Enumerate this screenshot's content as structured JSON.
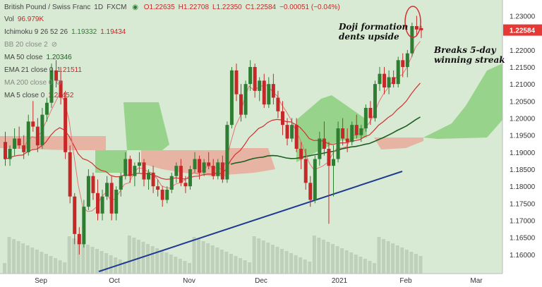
{
  "header": {
    "symbol": "British Pound / Swiss Franc",
    "interval": "1D",
    "source": "FXCM",
    "ohlc": {
      "o": "O1.22635",
      "h": "H1.22708",
      "l": "L1.22350",
      "c": "C1.22584",
      "chg": "−0.00051 (−0.04%)"
    }
  },
  "indicators": {
    "vol": {
      "label": "Vol",
      "value": "96.979K",
      "color": "#c0392b"
    },
    "ichimoku": {
      "label": "Ichimoku 9 26 52 26",
      "v1": "1.19332",
      "v2": "1.19434",
      "c1": "#2e8b3a",
      "c2": "#c0392b"
    },
    "bb": {
      "label": "BB 20 close 2"
    },
    "ma50": {
      "label": "MA 50 close",
      "value": "1.20346",
      "color": "#1e6b1e"
    },
    "ema21": {
      "label": "EMA 21 close 0",
      "value": "1.21511",
      "color": "#c0392b"
    },
    "ma200": {
      "label": "MA 200 close 0"
    },
    "ma5": {
      "label": "MA 5 close 0",
      "value": "1.21452",
      "color": "#c0392b"
    }
  },
  "price_label": "1.22584",
  "annotations": {
    "doji1": "Doji formation",
    "doji2": "dents upside",
    "streak1": "Breaks 5-day",
    "streak2": "winning streak"
  },
  "colors": {
    "up": "#2e7d32",
    "down": "#c62828",
    "cloud_green": "#8ccf7e",
    "cloud_red": "#e9a99a",
    "trendline": "#1f3a93",
    "ema": "#d32f2f",
    "ma50": "#1b5e20",
    "bg": "#d9ead4"
  },
  "chart_data": {
    "type": "candlestick",
    "xlabels": [
      "Sep",
      "Oct",
      "Nov",
      "Dec",
      "2021",
      "Feb",
      "Mar"
    ],
    "ylim": [
      1.155,
      1.233
    ],
    "yticks": [
      "1.23000",
      "1.22000",
      "1.21500",
      "1.21000",
      "1.20500",
      "1.20000",
      "1.19500",
      "1.19000",
      "1.18500",
      "1.18000",
      "1.17500",
      "1.17000",
      "1.16500",
      "1.16000"
    ],
    "candles": [
      [
        1.193,
        1.196,
        1.186,
        1.188
      ],
      [
        1.188,
        1.192,
        1.186,
        1.191
      ],
      [
        1.191,
        1.197,
        1.189,
        1.194
      ],
      [
        1.194,
        1.1975,
        1.191,
        1.192
      ],
      [
        1.192,
        1.195,
        1.188,
        1.19
      ],
      [
        1.19,
        1.201,
        1.189,
        1.199
      ],
      [
        1.199,
        1.205,
        1.196,
        1.1975
      ],
      [
        1.1975,
        1.2,
        1.19,
        1.192
      ],
      [
        1.192,
        1.203,
        1.191,
        1.201
      ],
      [
        1.201,
        1.206,
        1.199,
        1.2045
      ],
      [
        1.2045,
        1.216,
        1.203,
        1.214
      ],
      [
        1.214,
        1.217,
        1.209,
        1.211
      ],
      [
        1.211,
        1.215,
        1.204,
        1.206
      ],
      [
        1.206,
        1.208,
        1.188,
        1.19
      ],
      [
        1.19,
        1.192,
        1.175,
        1.177
      ],
      [
        1.177,
        1.178,
        1.163,
        1.166
      ],
      [
        1.166,
        1.168,
        1.16,
        1.163
      ],
      [
        1.163,
        1.176,
        1.162,
        1.174
      ],
      [
        1.174,
        1.185,
        1.173,
        1.183
      ],
      [
        1.183,
        1.184,
        1.176,
        1.178
      ],
      [
        1.178,
        1.182,
        1.17,
        1.172
      ],
      [
        1.172,
        1.179,
        1.17,
        1.177
      ],
      [
        1.177,
        1.183,
        1.176,
        1.181
      ],
      [
        1.181,
        1.183,
        1.17,
        1.172
      ],
      [
        1.172,
        1.18,
        1.17,
        1.179
      ],
      [
        1.179,
        1.184,
        1.177,
        1.183
      ],
      [
        1.183,
        1.19,
        1.182,
        1.188
      ],
      [
        1.188,
        1.189,
        1.181,
        1.183
      ],
      [
        1.183,
        1.187,
        1.18,
        1.186
      ],
      [
        1.186,
        1.19,
        1.184,
        1.187
      ],
      [
        1.187,
        1.188,
        1.18,
        1.182
      ],
      [
        1.182,
        1.185,
        1.179,
        1.184
      ],
      [
        1.184,
        1.186,
        1.178,
        1.18
      ],
      [
        1.18,
        1.182,
        1.177,
        1.179
      ],
      [
        1.179,
        1.18,
        1.174,
        1.176
      ],
      [
        1.176,
        1.18,
        1.175,
        1.179
      ],
      [
        1.179,
        1.184,
        1.178,
        1.183
      ],
      [
        1.183,
        1.187,
        1.181,
        1.186
      ],
      [
        1.186,
        1.188,
        1.18,
        1.181
      ],
      [
        1.181,
        1.183,
        1.178,
        1.18
      ],
      [
        1.18,
        1.186,
        1.179,
        1.185
      ],
      [
        1.185,
        1.19,
        1.184,
        1.188
      ],
      [
        1.188,
        1.189,
        1.182,
        1.184
      ],
      [
        1.184,
        1.188,
        1.183,
        1.187
      ],
      [
        1.187,
        1.19,
        1.185,
        1.186
      ],
      [
        1.186,
        1.188,
        1.182,
        1.183
      ],
      [
        1.183,
        1.188,
        1.182,
        1.187
      ],
      [
        1.187,
        1.189,
        1.181,
        1.182
      ],
      [
        1.182,
        1.199,
        1.181,
        1.198
      ],
      [
        1.198,
        1.215,
        1.197,
        1.214
      ],
      [
        1.214,
        1.216,
        1.205,
        1.207
      ],
      [
        1.207,
        1.21,
        1.199,
        1.201
      ],
      [
        1.201,
        1.211,
        1.2,
        1.21
      ],
      [
        1.21,
        1.217,
        1.208,
        1.215
      ],
      [
        1.215,
        1.216,
        1.206,
        1.208
      ],
      [
        1.208,
        1.212,
        1.205,
        1.211
      ],
      [
        1.211,
        1.213,
        1.203,
        1.204
      ],
      [
        1.204,
        1.212,
        1.203,
        1.21
      ],
      [
        1.21,
        1.213,
        1.204,
        1.206
      ],
      [
        1.206,
        1.208,
        1.2,
        1.202
      ],
      [
        1.202,
        1.205,
        1.195,
        1.198
      ],
      [
        1.198,
        1.2,
        1.192,
        1.194
      ],
      [
        1.194,
        1.2,
        1.193,
        1.198
      ],
      [
        1.198,
        1.2,
        1.19,
        1.191
      ],
      [
        1.191,
        1.193,
        1.185,
        1.188
      ],
      [
        1.188,
        1.191,
        1.179,
        1.181
      ],
      [
        1.181,
        1.183,
        1.174,
        1.176
      ],
      [
        1.176,
        1.189,
        1.175,
        1.188
      ],
      [
        1.188,
        1.196,
        1.186,
        1.194
      ],
      [
        1.194,
        1.199,
        1.189,
        1.191
      ],
      [
        1.191,
        1.193,
        1.169,
        1.186
      ],
      [
        1.186,
        1.192,
        1.177,
        1.188
      ],
      [
        1.188,
        1.199,
        1.187,
        1.197
      ],
      [
        1.197,
        1.2,
        1.192,
        1.194
      ],
      [
        1.194,
        1.197,
        1.19,
        1.193
      ],
      [
        1.193,
        1.199,
        1.192,
        1.198
      ],
      [
        1.198,
        1.201,
        1.194,
        1.195
      ],
      [
        1.195,
        1.198,
        1.193,
        1.197
      ],
      [
        1.197,
        1.204,
        1.196,
        1.203
      ],
      [
        1.203,
        1.205,
        1.198,
        1.2
      ],
      [
        1.2,
        1.211,
        1.199,
        1.21
      ],
      [
        1.21,
        1.215,
        1.208,
        1.213
      ],
      [
        1.213,
        1.215,
        1.207,
        1.209
      ],
      [
        1.209,
        1.214,
        1.207,
        1.212
      ],
      [
        1.212,
        1.214,
        1.209,
        1.21
      ],
      [
        1.21,
        1.218,
        1.209,
        1.217
      ],
      [
        1.217,
        1.219,
        1.212,
        1.215
      ],
      [
        1.215,
        1.22,
        1.212,
        1.219
      ],
      [
        1.219,
        1.228,
        1.218,
        1.227
      ],
      [
        1.227,
        1.23,
        1.224,
        1.226
      ],
      [
        1.2264,
        1.2271,
        1.2235,
        1.2258
      ]
    ]
  }
}
